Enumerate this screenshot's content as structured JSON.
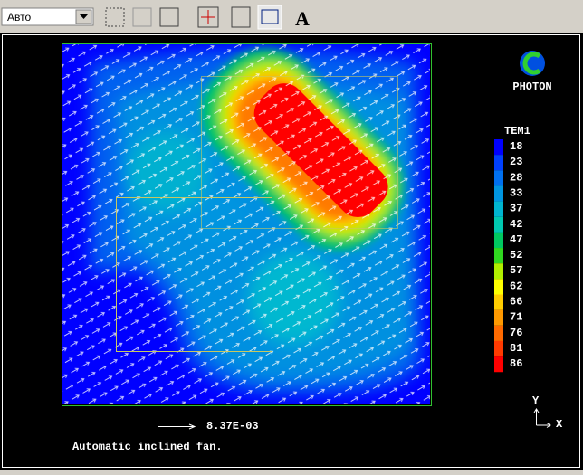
{
  "toolbar": {
    "dropdown": "Авто",
    "font_button": "A"
  },
  "logo": "PHOTON",
  "legend": {
    "title": "TEM1",
    "items": [
      {
        "value": 18,
        "color": "#0000ff"
      },
      {
        "value": 23,
        "color": "#0040ff"
      },
      {
        "value": 28,
        "color": "#0070f0"
      },
      {
        "value": 33,
        "color": "#0095e0"
      },
      {
        "value": 37,
        "color": "#00b5d0"
      },
      {
        "value": 42,
        "color": "#00c8b0"
      },
      {
        "value": 47,
        "color": "#00c860"
      },
      {
        "value": 52,
        "color": "#30d820"
      },
      {
        "value": 57,
        "color": "#b0ee00"
      },
      {
        "value": 62,
        "color": "#ffff00"
      },
      {
        "value": 66,
        "color": "#ffcc00"
      },
      {
        "value": 71,
        "color": "#ff9900"
      },
      {
        "value": 76,
        "color": "#ff6a00"
      },
      {
        "value": 81,
        "color": "#ff3a00"
      },
      {
        "value": 86,
        "color": "#ff0000"
      }
    ]
  },
  "vector_scale": "8.37E-03",
  "caption": "Automatic inclined fan.",
  "axes": {
    "y": "Y",
    "x": "X"
  }
}
